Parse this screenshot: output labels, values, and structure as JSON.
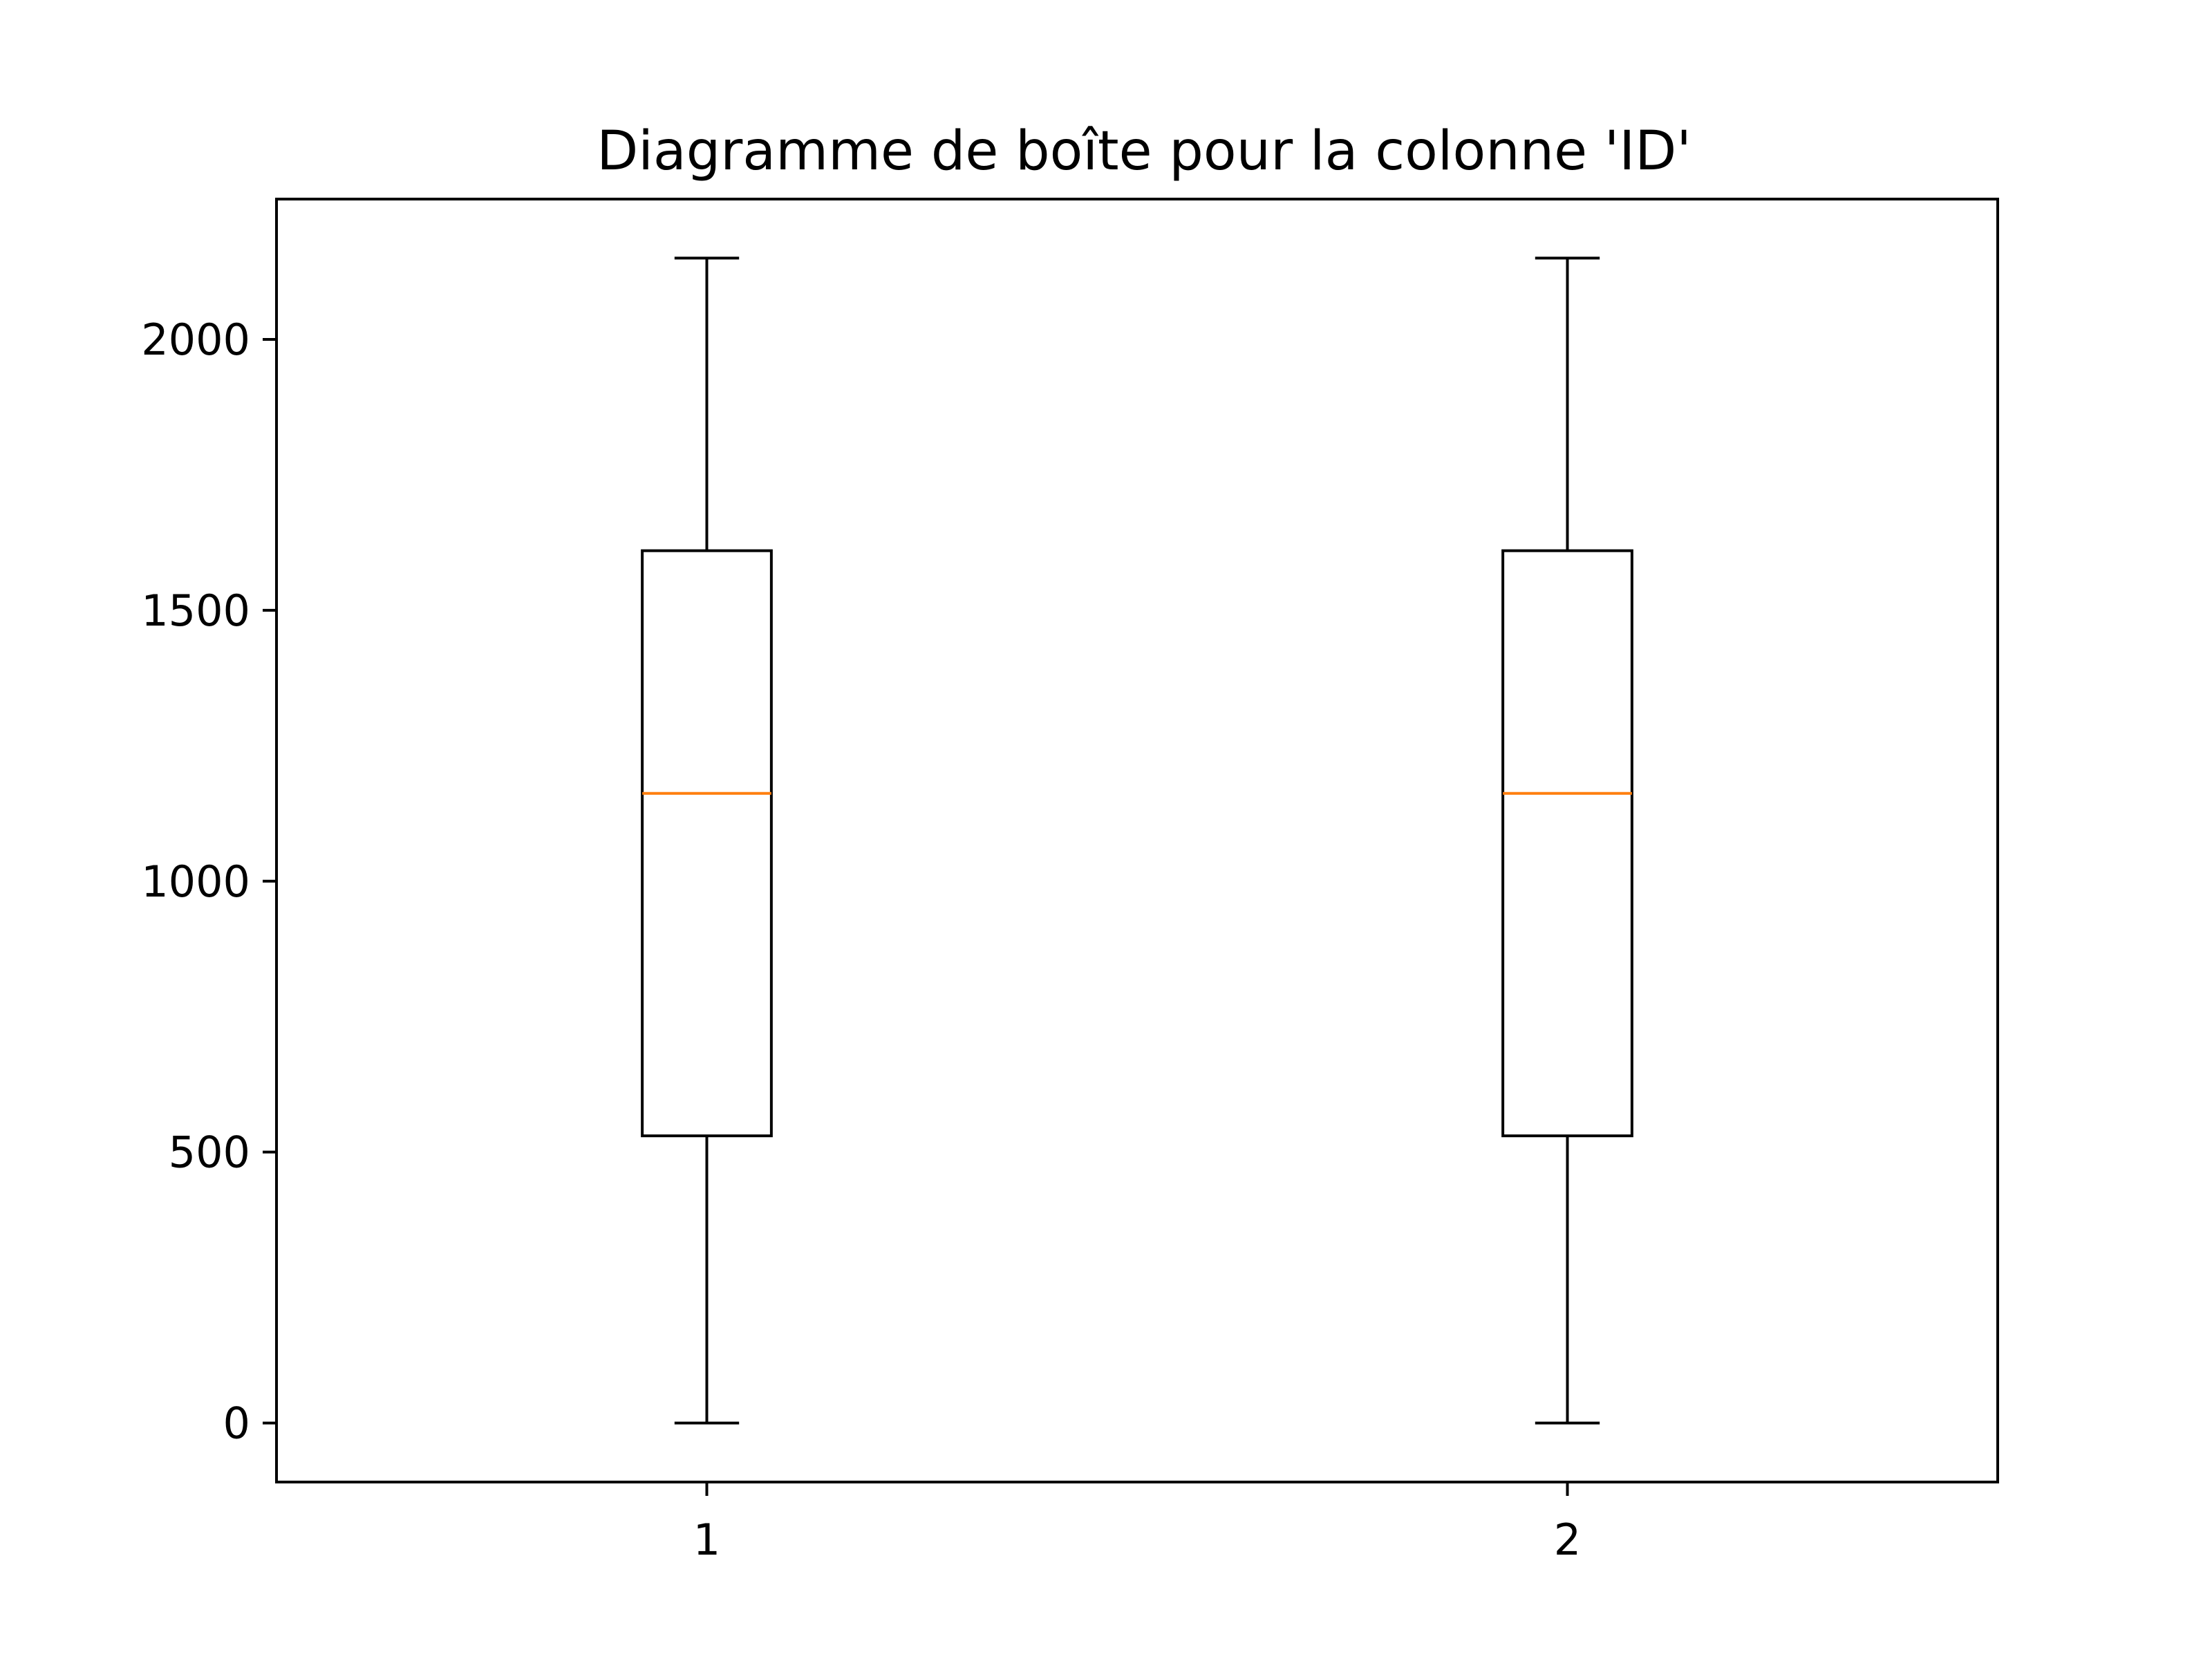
{
  "chart_data": {
    "type": "boxplot",
    "title": "Diagramme de boîte pour la colonne 'ID'",
    "xlabel": "",
    "ylabel": "",
    "categories": [
      "1",
      "2"
    ],
    "ylim": [
      -109,
      2259
    ],
    "yticks": [
      0,
      500,
      1000,
      1500,
      2000
    ],
    "ytick_labels": [
      "0",
      "500",
      "1000",
      "1500",
      "2000"
    ],
    "grid": false,
    "boxes": [
      {
        "label": "1",
        "whisker_low": 0,
        "q1": 530,
        "median": 1162,
        "q3": 1610,
        "whisker_high": 2150
      },
      {
        "label": "2",
        "whisker_low": 0,
        "q1": 530,
        "median": 1162,
        "q3": 1610,
        "whisker_high": 2150
      }
    ],
    "colors": {
      "box": "#000000",
      "median": "#ff7f0e",
      "axes": "#000000"
    }
  }
}
